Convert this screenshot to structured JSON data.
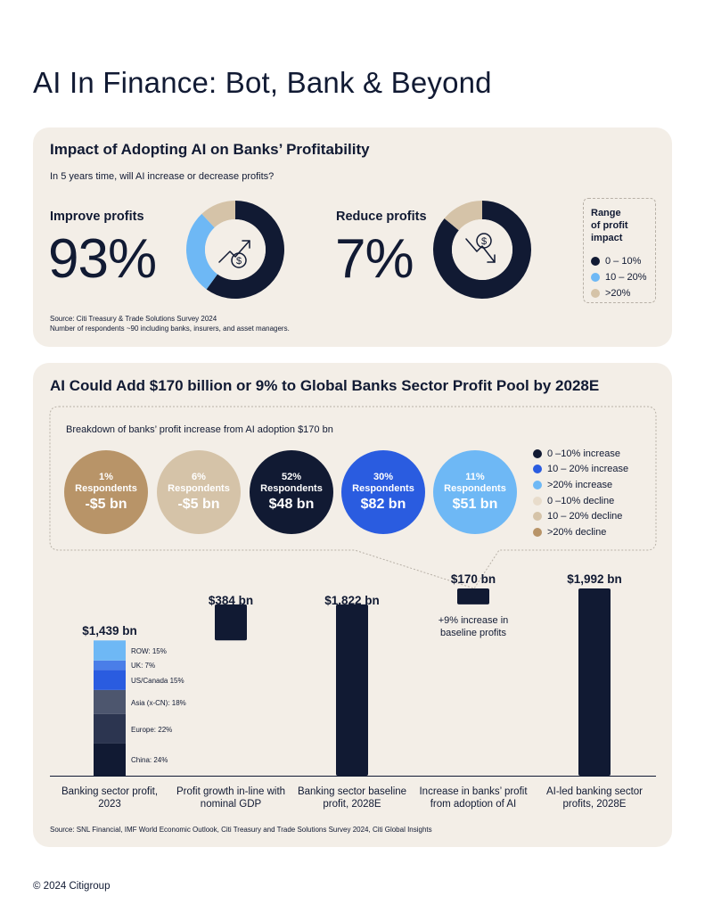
{
  "title": "AI In Finance: Bot, Bank & Beyond",
  "colors": {
    "navy": "#111a33",
    "blue": "#2a5ce0",
    "light_blue": "#6eb8f5",
    "beige": "#d5c3a8",
    "tan": "#b89468",
    "panel_bg": "#f3eee7",
    "white": "#ffffff"
  },
  "section1": {
    "title": "Impact of Adopting AI on Banks’ Profitability",
    "subtitle": "In 5 years time, will AI increase or decrease profits?",
    "improve": {
      "label": "Improve profits",
      "value": "93%",
      "icon": "arrow-up-dollar-icon"
    },
    "reduce": {
      "label": "Reduce profits",
      "value": "7%",
      "icon": "arrow-down-dollar-icon"
    },
    "legend": {
      "title_lines": [
        "Range",
        "of profit",
        "impact"
      ],
      "items": [
        {
          "label": "0 – 10%",
          "color": "#111a33"
        },
        {
          "label": "10 – 20%",
          "color": "#6eb8f5"
        },
        {
          "label": ">20%",
          "color": "#d5c3a8"
        }
      ]
    },
    "source_lines": [
      "Source: Citi Treasury & Trade Solutions Survey 2024",
      "Number of respondents ~90 including banks, insurers, and asset managers."
    ]
  },
  "section2": {
    "title": "AI Could Add $170 billion or 9% to Global Banks Sector Profit Pool by 2028E",
    "breakdown_title": "Breakdown of banks’ profit increase from AI adoption $170 bn",
    "bubbles": [
      {
        "pct": "1%",
        "label": "Respondents",
        "value": "-$5 bn",
        "color": "#b89468"
      },
      {
        "pct": "6%",
        "label": "Respondents",
        "value": "-$5 bn",
        "color": "#d5c3a8"
      },
      {
        "pct": "52%",
        "label": "Respondents",
        "value": "$48 bn",
        "color": "#111a33"
      },
      {
        "pct": "30%",
        "label": "Respondents",
        "value": "$82 bn",
        "color": "#2a5ce0"
      },
      {
        "pct": "11%",
        "label": "Respondents",
        "value": "$51 bn",
        "color": "#6eb8f5"
      }
    ],
    "legend": [
      {
        "label": "0 –10% increase",
        "color": "#111a33"
      },
      {
        "label": "10 – 20% increase",
        "color": "#2a5ce0"
      },
      {
        "label": ">20% increase",
        "color": "#6eb8f5"
      },
      {
        "label": "0 –10% decline",
        "color": "#e8dccb"
      },
      {
        "label": "10 – 20% decline",
        "color": "#d5c3a8"
      },
      {
        "label": ">20% decline",
        "color": "#b89468"
      }
    ],
    "increase_note": "+9% increase in baseline profits",
    "source": "Source: SNL Financial, IMF World Economic Outlook, Citi Treasury and Trade Solutions Survey 2024, Citi Global Insights"
  },
  "chart_data": [
    {
      "type": "pie",
      "title": "Improve profits",
      "slices": [
        {
          "name": "0 – 10%",
          "value": 60
        },
        {
          "name": "10 – 20%",
          "value": 28
        },
        {
          "name": ">20%",
          "value": 12
        }
      ]
    },
    {
      "type": "pie",
      "title": "Reduce profits",
      "slices": [
        {
          "name": "0 – 10%",
          "value": 86
        },
        {
          "name": ">20%",
          "value": 14
        }
      ]
    },
    {
      "type": "bar",
      "subtype": "waterfall",
      "unit": "$ bn",
      "ylim": [
        0,
        2000
      ],
      "categories": [
        "Banking sector profit, 2023",
        "Profit growth in-line with nominal GDP",
        "Banking sector baseline profit, 2028E",
        "Increase in banks’ profit from adoption of AI",
        "AI-led banking sector profits, 2028E"
      ],
      "bars": [
        {
          "start": 0,
          "end": 1439,
          "label": "$1,439 bn"
        },
        {
          "start": 1439,
          "end": 1822,
          "label": "$384 bn"
        },
        {
          "start": 0,
          "end": 1822,
          "label": "$1,822 bn"
        },
        {
          "start": 1822,
          "end": 1992,
          "label": "$170 bn"
        },
        {
          "start": 0,
          "end": 1992,
          "label": "$1,992 bn"
        }
      ],
      "stack_2023": [
        {
          "name": "China: 24%",
          "share": 24,
          "color": "#111a33"
        },
        {
          "name": "Europe: 22%",
          "share": 22,
          "color": "#2c3550"
        },
        {
          "name": "Asia (x-CN): 18%",
          "share": 18,
          "color": "#4d566e"
        },
        {
          "name": "US/Canada 15%",
          "share": 15,
          "color": "#2a5ce0"
        },
        {
          "name": "UK: 7%",
          "share": 7,
          "color": "#4a7ee8"
        },
        {
          "name": "ROW: 15%",
          "share": 15,
          "color": "#6eb8f5"
        }
      ]
    }
  ],
  "footer": "© 2024 Citigroup"
}
